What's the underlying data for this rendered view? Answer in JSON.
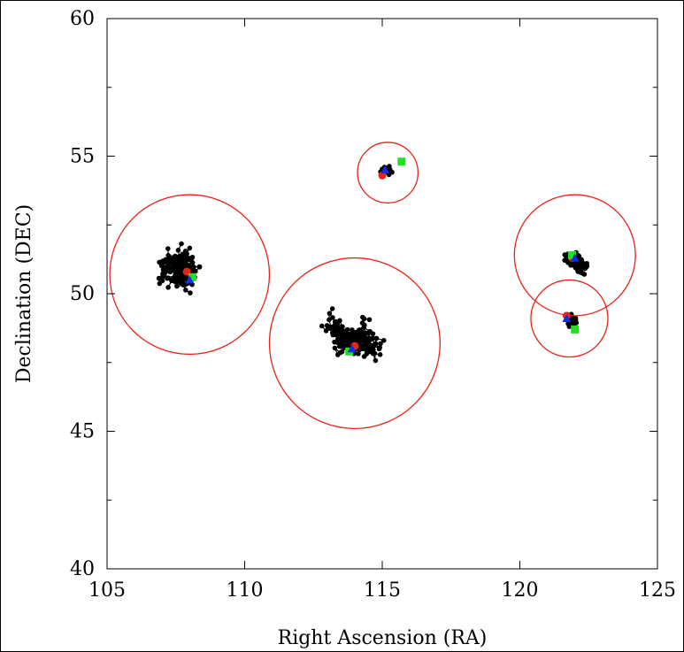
{
  "chart_data": {
    "type": "scatter",
    "title": "",
    "xlabel": "Right Ascension (RA)",
    "ylabel": "Declination (DEC)",
    "xlim": [
      105,
      125
    ],
    "ylim": [
      40,
      60
    ],
    "xticks": [
      105,
      110,
      115,
      120,
      125
    ],
    "yticks": [
      40,
      45,
      50,
      55,
      60
    ],
    "grid": false,
    "legend": "none",
    "colors": {
      "points": "#000000",
      "circles": "#e8231a",
      "green": "#22e022",
      "blue": "#1a2be8",
      "red": "#e8231a"
    },
    "clusters": [
      {
        "center": [
          108.0,
          50.7
        ],
        "radius": 2.9,
        "count": 200,
        "spread": [
          2.5,
          1.8
        ],
        "markers": {
          "red": [
            107.9,
            50.8
          ],
          "green": [
            108.1,
            50.6
          ],
          "blue": [
            108.0,
            50.5
          ]
        }
      },
      {
        "center": [
          114.0,
          48.2
        ],
        "radius": 3.1,
        "count": 220,
        "spread": [
          3.0,
          1.9
        ],
        "markers": {
          "red": [
            114.0,
            48.1
          ],
          "green": [
            113.8,
            47.9
          ],
          "blue": [
            113.9,
            48.0
          ]
        }
      },
      {
        "center": [
          115.2,
          54.4
        ],
        "radius": 1.1,
        "count": 18,
        "spread": [
          0.8,
          0.5
        ],
        "markers": {
          "red": [
            115.0,
            54.3
          ],
          "green": [
            115.7,
            54.8
          ],
          "blue": [
            115.1,
            54.5
          ]
        }
      },
      {
        "center": [
          122.0,
          51.4
        ],
        "radius": 2.2,
        "count": 110,
        "spread": [
          1.9,
          1.0
        ],
        "markers": {
          "red": [
            121.9,
            51.3
          ],
          "green": [
            121.9,
            51.4
          ],
          "blue": [
            122.0,
            51.3
          ]
        }
      },
      {
        "center": [
          121.8,
          49.1
        ],
        "radius": 1.4,
        "count": 20,
        "spread": [
          1.0,
          0.8
        ],
        "markers": {
          "red": [
            121.7,
            49.2
          ],
          "green": [
            122.0,
            48.7
          ],
          "blue": [
            121.7,
            49.1
          ]
        }
      }
    ]
  }
}
